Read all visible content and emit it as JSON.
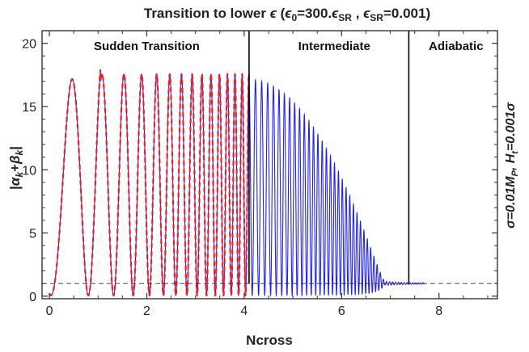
{
  "chart_data": {
    "type": "line",
    "title": "Transition to lower ϵ (ϵ₀=300.ϵSR , ϵSR=0.001)",
    "xlabel": "Ncross",
    "ylabel": "|αk+βk|",
    "side_label": "σ=0.01MP,   Ht=0.001σ",
    "xlim": [
      -0.15,
      9.2
    ],
    "ylim": [
      -0.2,
      21
    ],
    "xticks": [
      0,
      2,
      4,
      6,
      8
    ],
    "yticks": [
      0,
      5,
      10,
      15,
      20
    ],
    "grid": false,
    "vlines": [
      4.1,
      7.38
    ],
    "hline": 1,
    "annotations": [
      {
        "text": "Sudden Transition",
        "x": 2.0,
        "y": 19.8
      },
      {
        "text": "Intermediate",
        "x": 5.85,
        "y": 19.8
      },
      {
        "text": "Adiabatic",
        "x": 8.35,
        "y": 19.8
      }
    ],
    "series": [
      {
        "color": "#2222ee",
        "style": "solid",
        "x_range": [
          0,
          7.7
        ],
        "peak": 18.5,
        "start": 5.4,
        "end": 1.0
      },
      {
        "color": "#ee2222",
        "style": "dashed",
        "x_range": [
          0,
          4.1
        ],
        "peak": 18.5,
        "start": 5.4
      }
    ]
  }
}
